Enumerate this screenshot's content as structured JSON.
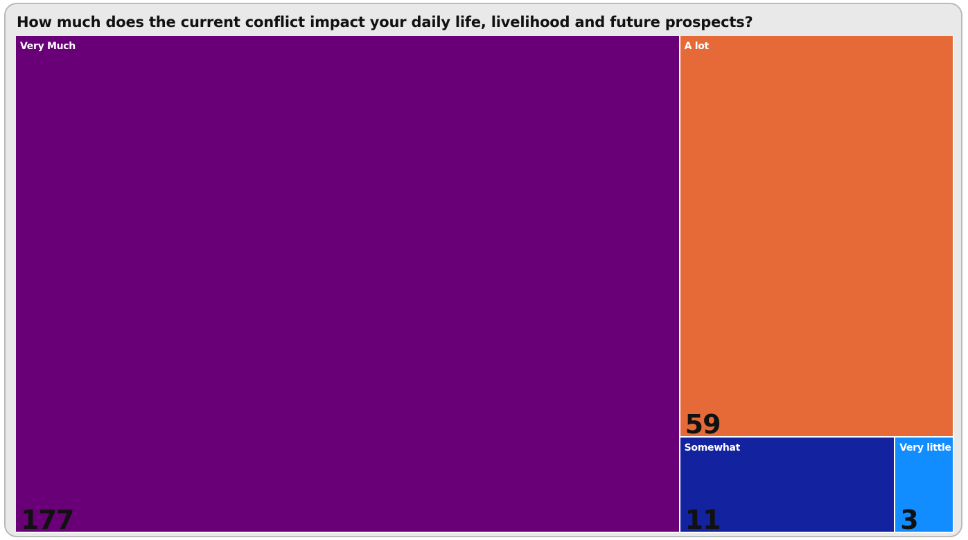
{
  "chart_data": {
    "type": "treemap",
    "title": "How much does the current conflict impact your daily life, livelihood and future prospects?",
    "categories": [
      "Very Much",
      "A lot",
      "Somewhat",
      "Very little"
    ],
    "values": [
      177,
      59,
      11,
      3
    ],
    "colors": [
      "#6a0078",
      "#e56a37",
      "#13229e",
      "#118dff"
    ]
  }
}
